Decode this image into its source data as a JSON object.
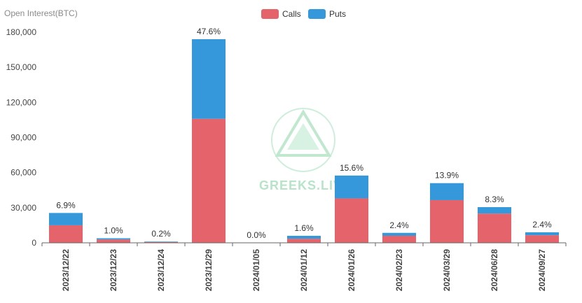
{
  "chart_data": {
    "type": "bar",
    "stacked": true,
    "ylabel": "Open Interest(BTC)",
    "ylim": [
      0,
      180000
    ],
    "yticks": [
      0,
      30000,
      60000,
      90000,
      120000,
      150000,
      180000
    ],
    "ytick_labels": [
      "0",
      "30,000",
      "60,000",
      "90,000",
      "120,000",
      "150,000",
      "180,000"
    ],
    "categories": [
      "2023/12/22",
      "2023/12/23",
      "2023/12/24",
      "2023/12/29",
      "2024/01/05",
      "2024/01/12",
      "2024/01/26",
      "2024/02/23",
      "2024/03/29",
      "2024/06/28",
      "2024/09/27"
    ],
    "series": [
      {
        "name": "Calls",
        "color": "#e5646b",
        "values": [
          15000,
          2800,
          700,
          106000,
          0,
          3500,
          38000,
          6000,
          36500,
          25000,
          6500
        ]
      },
      {
        "name": "Puts",
        "color": "#3498db",
        "values": [
          10500,
          1100,
          400,
          68000,
          0,
          2500,
          19500,
          2500,
          14500,
          5500,
          2500
        ]
      }
    ],
    "data_labels": [
      "6.9%",
      "1.0%",
      "0.2%",
      "47.6%",
      "0.0%",
      "1.6%",
      "15.6%",
      "2.4%",
      "13.9%",
      "8.3%",
      "2.4%"
    ],
    "legend": {
      "position": "top-center",
      "items": [
        "Calls",
        "Puts"
      ]
    },
    "grid": false
  },
  "watermark": {
    "text": "GREEKS.LIVE"
  }
}
